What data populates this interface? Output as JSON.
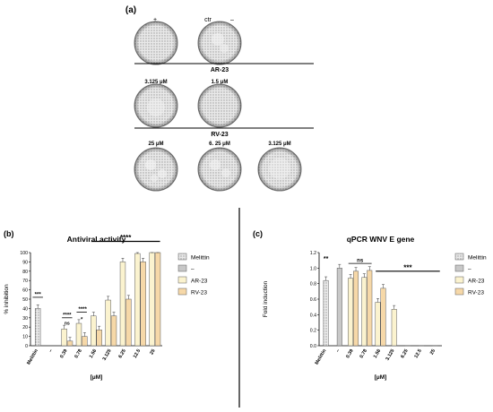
{
  "panels": {
    "a": {
      "label": "(a)",
      "col_labels": [
        "+",
        "ctr",
        "–"
      ],
      "group_ar": "AR-23",
      "ar_concs": [
        "3.125 μM",
        "1.5 μM"
      ],
      "group_rv": "RV-23",
      "rv_concs": [
        "25 μM",
        "6. 25 μM",
        "3.125 μM"
      ]
    },
    "b": {
      "label": "(b)"
    },
    "c": {
      "label": "(c)"
    }
  },
  "colors": {
    "melittin": "#e8d8c4",
    "neg": "#c8c8c8",
    "ar23": "#fbf3cf",
    "rv23": "#f6d8a8",
    "edge": "#5a5a5a"
  },
  "chart_data": [
    {
      "type": "bar",
      "title": "Antiviral activity",
      "ylabel": "% inhibition",
      "xlabel": "[μM]",
      "ylim": [
        0,
        100
      ],
      "yticks": [
        "0",
        "10",
        "20",
        "30",
        "40",
        "50",
        "60",
        "70",
        "80",
        "90",
        "100"
      ],
      "categories": [
        "Melittin",
        "–",
        "0.39",
        "0.78",
        "1.56",
        "3.125",
        "6.25",
        "12.5",
        "25"
      ],
      "legend": [
        "Melittin",
        "–",
        "AR-23",
        "RV-23"
      ],
      "series": [
        {
          "name": "Melittin",
          "values": [
            40,
            null,
            null,
            null,
            null,
            null,
            null,
            null,
            null
          ]
        },
        {
          "name": "AR-23",
          "values": [
            null,
            null,
            18,
            24,
            32,
            49,
            90,
            99,
            100
          ]
        },
        {
          "name": "RV-23",
          "values": [
            null,
            null,
            5,
            10,
            17,
            32,
            50,
            90,
            100
          ]
        }
      ],
      "annotations": [
        "***",
        "****",
        "ns",
        "****",
        "*",
        "****"
      ]
    },
    {
      "type": "bar",
      "title": "qPCR WNV E gene",
      "ylabel": "Fold induction",
      "xlabel": "[μM]",
      "ylim": [
        0,
        1.2
      ],
      "yticks": [
        "0.0",
        "0.2",
        "0.4",
        "0.6",
        "0.8",
        "1.0",
        "1.2"
      ],
      "categories": [
        "Melittin",
        "–",
        "0.39",
        "0.78",
        "1.56",
        "3.125",
        "6.25",
        "12.5",
        "25"
      ],
      "legend": [
        "Melittin",
        "–",
        "AR-23",
        "RV-23"
      ],
      "series": [
        {
          "name": "Melittin",
          "values": [
            0.84,
            null,
            null,
            null,
            null,
            null,
            null,
            null,
            null
          ]
        },
        {
          "name": "–",
          "values": [
            null,
            1.0,
            null,
            null,
            null,
            null,
            null,
            null,
            null
          ]
        },
        {
          "name": "AR-23",
          "values": [
            null,
            null,
            0.87,
            0.88,
            0.56,
            0.47,
            0,
            0,
            0
          ]
        },
        {
          "name": "RV-23",
          "values": [
            null,
            null,
            0.96,
            0.97,
            0.74,
            null,
            null,
            null,
            null
          ]
        }
      ],
      "annotations": [
        "**",
        "ns",
        "***"
      ]
    }
  ]
}
